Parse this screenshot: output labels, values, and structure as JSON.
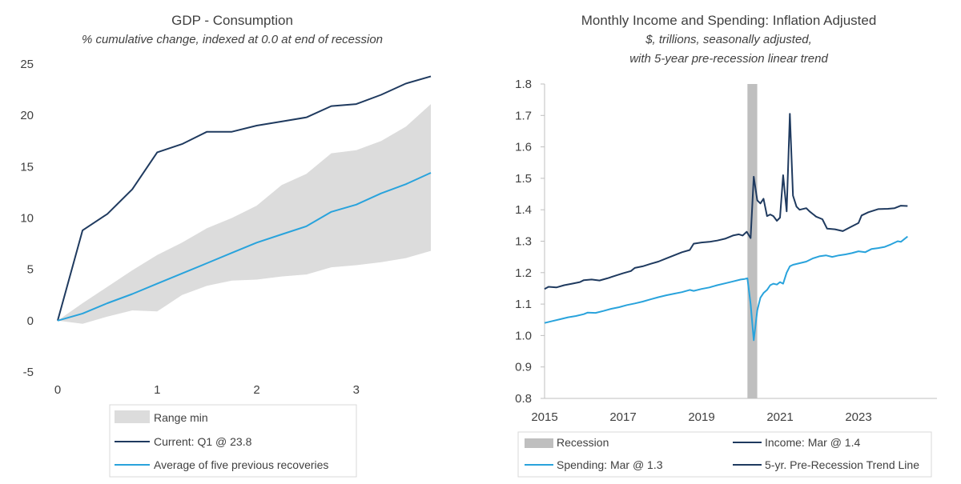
{
  "colors": {
    "dark_navy": "#1f3a5f",
    "light_blue": "#29a3dc",
    "band_gray": "#dcdcdc",
    "recession_gray": "#bfbfbf",
    "axis": "#bfbfbf",
    "text": "#404040"
  },
  "chart_data": [
    {
      "type": "line",
      "title": "GDP - Consumption",
      "subtitle": "% cumulative change, indexed at 0.0 at end of recession",
      "xlim": [
        0,
        3.75
      ],
      "ylim": [
        -5,
        25
      ],
      "xticks": [
        0,
        1,
        2,
        3
      ],
      "yticks": [
        -5,
        0,
        5,
        10,
        15,
        20,
        25
      ],
      "x": [
        0,
        0.25,
        0.5,
        0.75,
        1,
        1.25,
        1.5,
        1.75,
        2,
        2.25,
        2.5,
        2.75,
        3,
        3.25,
        3.5,
        3.75
      ],
      "series": [
        {
          "name": "Range min",
          "kind": "band",
          "lower": [
            0,
            -0.3,
            0.4,
            1.0,
            0.9,
            2.5,
            3.4,
            3.9,
            4.0,
            4.3,
            4.5,
            5.2,
            5.4,
            5.7,
            6.1,
            6.8
          ],
          "upper": [
            0,
            1.7,
            3.3,
            4.9,
            6.4,
            7.6,
            9.0,
            10.0,
            11.2,
            13.2,
            14.3,
            16.3,
            16.6,
            17.5,
            18.9,
            21.1
          ]
        },
        {
          "name": "Current: Q1 @ 23.8",
          "values": [
            0,
            8.8,
            10.4,
            12.8,
            16.4,
            17.2,
            18.4,
            18.4,
            19.0,
            19.4,
            19.8,
            20.9,
            21.1,
            22.0,
            23.1,
            23.8
          ]
        },
        {
          "name": "Average of five previous recoveries",
          "values": [
            0,
            0.7,
            1.7,
            2.6,
            3.6,
            4.6,
            5.6,
            6.6,
            7.6,
            8.4,
            9.2,
            10.6,
            11.3,
            12.4,
            13.3,
            14.4
          ]
        }
      ],
      "legend": [
        "Range min",
        "Current: Q1 @ 23.8",
        "Average of five previous recoveries"
      ],
      "legend_position": "bottom"
    },
    {
      "type": "line",
      "title": "Monthly Income and Spending: Inflation Adjusted",
      "subtitle_line1": "$, trillions, seasonally adjusted,",
      "subtitle_line2": "with 5-year pre-recession linear trend",
      "xlim": [
        2015,
        2025
      ],
      "ylim": [
        0.8,
        1.8
      ],
      "xticks": [
        2015,
        2017,
        2019,
        2021,
        2023
      ],
      "yticks": [
        0.8,
        0.9,
        1.0,
        1.1,
        1.2,
        1.3,
        1.4,
        1.5,
        1.6,
        1.7,
        1.8
      ],
      "recession": [
        2020.17,
        2020.42
      ],
      "series": [
        {
          "name": "Income: Mar @ 1.4",
          "points": [
            [
              2015.0,
              1.148
            ],
            [
              2015.1,
              1.155
            ],
            [
              2015.3,
              1.153
            ],
            [
              2015.5,
              1.16
            ],
            [
              2015.7,
              1.165
            ],
            [
              2015.9,
              1.17
            ],
            [
              2016.0,
              1.176
            ],
            [
              2016.2,
              1.178
            ],
            [
              2016.4,
              1.175
            ],
            [
              2016.6,
              1.182
            ],
            [
              2016.8,
              1.19
            ],
            [
              2017.0,
              1.198
            ],
            [
              2017.2,
              1.205
            ],
            [
              2017.3,
              1.215
            ],
            [
              2017.5,
              1.22
            ],
            [
              2017.7,
              1.228
            ],
            [
              2017.9,
              1.235
            ],
            [
              2018.1,
              1.245
            ],
            [
              2018.3,
              1.255
            ],
            [
              2018.5,
              1.265
            ],
            [
              2018.7,
              1.272
            ],
            [
              2018.8,
              1.292
            ],
            [
              2019.0,
              1.296
            ],
            [
              2019.2,
              1.298
            ],
            [
              2019.4,
              1.302
            ],
            [
              2019.6,
              1.308
            ],
            [
              2019.8,
              1.318
            ],
            [
              2019.95,
              1.322
            ],
            [
              2020.05,
              1.318
            ],
            [
              2020.15,
              1.33
            ],
            [
              2020.25,
              1.31
            ],
            [
              2020.33,
              1.505
            ],
            [
              2020.42,
              1.43
            ],
            [
              2020.5,
              1.42
            ],
            [
              2020.58,
              1.435
            ],
            [
              2020.67,
              1.38
            ],
            [
              2020.75,
              1.385
            ],
            [
              2020.83,
              1.38
            ],
            [
              2020.92,
              1.365
            ],
            [
              2021.0,
              1.375
            ],
            [
              2021.08,
              1.51
            ],
            [
              2021.17,
              1.395
            ],
            [
              2021.25,
              1.705
            ],
            [
              2021.33,
              1.445
            ],
            [
              2021.42,
              1.41
            ],
            [
              2021.5,
              1.4
            ],
            [
              2021.67,
              1.405
            ],
            [
              2021.75,
              1.395
            ],
            [
              2021.92,
              1.378
            ],
            [
              2022.08,
              1.37
            ],
            [
              2022.2,
              1.34
            ],
            [
              2022.4,
              1.338
            ],
            [
              2022.6,
              1.332
            ],
            [
              2022.8,
              1.345
            ],
            [
              2023.0,
              1.358
            ],
            [
              2023.08,
              1.382
            ],
            [
              2023.25,
              1.392
            ],
            [
              2023.5,
              1.402
            ],
            [
              2023.75,
              1.403
            ],
            [
              2023.92,
              1.405
            ],
            [
              2024.08,
              1.413
            ],
            [
              2024.25,
              1.412
            ]
          ]
        },
        {
          "name": "Spending: Mar @ 1.3",
          "points": [
            [
              2015.0,
              1.04
            ],
            [
              2015.2,
              1.046
            ],
            [
              2015.4,
              1.052
            ],
            [
              2015.6,
              1.058
            ],
            [
              2015.8,
              1.062
            ],
            [
              2016.0,
              1.068
            ],
            [
              2016.1,
              1.073
            ],
            [
              2016.3,
              1.072
            ],
            [
              2016.5,
              1.078
            ],
            [
              2016.7,
              1.085
            ],
            [
              2016.9,
              1.09
            ],
            [
              2017.1,
              1.097
            ],
            [
              2017.3,
              1.102
            ],
            [
              2017.5,
              1.108
            ],
            [
              2017.7,
              1.115
            ],
            [
              2017.9,
              1.122
            ],
            [
              2018.1,
              1.128
            ],
            [
              2018.3,
              1.133
            ],
            [
              2018.5,
              1.138
            ],
            [
              2018.7,
              1.145
            ],
            [
              2018.8,
              1.142
            ],
            [
              2019.0,
              1.148
            ],
            [
              2019.2,
              1.153
            ],
            [
              2019.4,
              1.16
            ],
            [
              2019.6,
              1.166
            ],
            [
              2019.8,
              1.172
            ],
            [
              2020.0,
              1.178
            ],
            [
              2020.1,
              1.18
            ],
            [
              2020.17,
              1.182
            ],
            [
              2020.25,
              1.1
            ],
            [
              2020.33,
              0.985
            ],
            [
              2020.42,
              1.08
            ],
            [
              2020.5,
              1.12
            ],
            [
              2020.58,
              1.135
            ],
            [
              2020.67,
              1.145
            ],
            [
              2020.75,
              1.16
            ],
            [
              2020.83,
              1.165
            ],
            [
              2020.92,
              1.162
            ],
            [
              2021.0,
              1.17
            ],
            [
              2021.08,
              1.165
            ],
            [
              2021.17,
              1.2
            ],
            [
              2021.25,
              1.22
            ],
            [
              2021.33,
              1.225
            ],
            [
              2021.5,
              1.23
            ],
            [
              2021.67,
              1.235
            ],
            [
              2021.83,
              1.245
            ],
            [
              2022.0,
              1.252
            ],
            [
              2022.17,
              1.255
            ],
            [
              2022.33,
              1.25
            ],
            [
              2022.5,
              1.255
            ],
            [
              2022.67,
              1.258
            ],
            [
              2022.83,
              1.262
            ],
            [
              2023.0,
              1.268
            ],
            [
              2023.17,
              1.265
            ],
            [
              2023.33,
              1.275
            ],
            [
              2023.5,
              1.278
            ],
            [
              2023.67,
              1.282
            ],
            [
              2023.83,
              1.29
            ],
            [
              2024.0,
              1.3
            ],
            [
              2024.08,
              1.298
            ],
            [
              2024.25,
              1.315
            ]
          ]
        }
      ],
      "legend": [
        "Recession",
        "Income: Mar @ 1.4",
        "Spending: Mar @ 1.3",
        "5-yr. Pre-Recession Trend Line"
      ],
      "legend_position": "bottom"
    }
  ]
}
